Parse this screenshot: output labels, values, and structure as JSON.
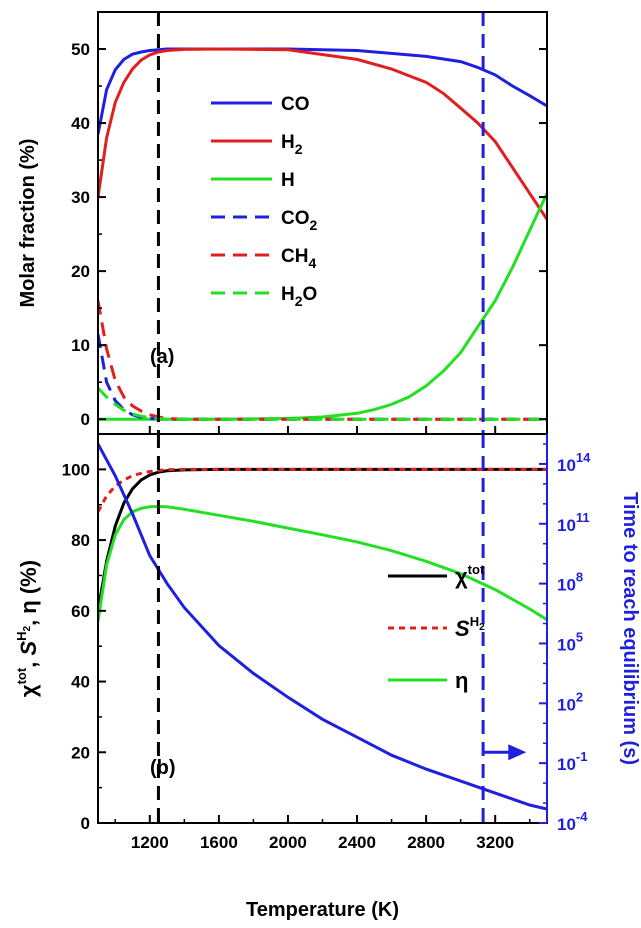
{
  "chart_data": [
    {
      "type": "line",
      "panel_label": "(a)",
      "ylabel": "Molar fraction (%)",
      "xlim": [
        900,
        3500
      ],
      "ylim": [
        -2,
        55
      ],
      "yticks": [
        0,
        10,
        20,
        30,
        40,
        50
      ],
      "vlines": [
        {
          "x": 1250,
          "color": "#000000",
          "style": "dashed"
        },
        {
          "x": 3130,
          "color": "#1f1fe0",
          "style": "dashed"
        }
      ],
      "legend_position": "center-left",
      "series": [
        {
          "name": "CO",
          "color": "#1f1fe0",
          "style": "solid",
          "x": [
            900,
            950,
            1000,
            1050,
            1100,
            1150,
            1200,
            1250,
            1300,
            1400,
            1600,
            2000,
            2400,
            2800,
            3000,
            3100,
            3200,
            3300,
            3400,
            3500
          ],
          "y": [
            38.5,
            44.5,
            47.2,
            48.6,
            49.3,
            49.6,
            49.8,
            49.9,
            50,
            50,
            50,
            50,
            49.8,
            49,
            48.3,
            47.5,
            46.5,
            45,
            43.7,
            42.3
          ]
        },
        {
          "name": "H2",
          "color": "#e01f1f",
          "style": "solid",
          "x": [
            900,
            950,
            1000,
            1050,
            1100,
            1150,
            1200,
            1250,
            1300,
            1400,
            1600,
            2000,
            2400,
            2600,
            2800,
            2900,
            3000,
            3100,
            3200,
            3300,
            3400,
            3500
          ],
          "y": [
            30,
            38,
            42.8,
            45.5,
            47.3,
            48.5,
            49.2,
            49.6,
            49.8,
            49.95,
            50,
            49.9,
            48.6,
            47.3,
            45.5,
            44,
            42,
            40,
            37.5,
            34,
            30.5,
            27
          ]
        },
        {
          "name": "H",
          "color": "#22e022",
          "style": "solid",
          "x": [
            900,
            1200,
            1600,
            2000,
            2200,
            2400,
            2500,
            2600,
            2700,
            2800,
            2900,
            3000,
            3100,
            3200,
            3300,
            3400,
            3500
          ],
          "y": [
            0,
            0,
            0,
            0.1,
            0.3,
            0.8,
            1.3,
            2,
            3,
            4.5,
            6.5,
            9,
            12.5,
            16,
            20.5,
            25.5,
            30.5
          ]
        },
        {
          "name": "CO2",
          "color": "#1f1fe0",
          "style": "dashed",
          "x": [
            900,
            950,
            1000,
            1050,
            1100,
            1150,
            1200,
            1250,
            1300,
            1400,
            3500
          ],
          "y": [
            11.5,
            5,
            2.5,
            1.3,
            0.6,
            0.25,
            0.1,
            0.05,
            0,
            0,
            0
          ]
        },
        {
          "name": "CH4",
          "color": "#e01f1f",
          "style": "dashed",
          "x": [
            900,
            950,
            1000,
            1050,
            1100,
            1150,
            1200,
            1250,
            1300,
            1400,
            3500
          ],
          "y": [
            16,
            9.5,
            5.2,
            3,
            1.8,
            1.1,
            0.6,
            0.3,
            0.1,
            0,
            0
          ]
        },
        {
          "name": "H2O",
          "color": "#22e022",
          "style": "dashed",
          "x": [
            900,
            950,
            1000,
            1050,
            1100,
            1150,
            1200,
            1250,
            1300,
            1400,
            3500
          ],
          "y": [
            4.2,
            3,
            2,
            1.2,
            0.7,
            0.4,
            0.2,
            0.1,
            0,
            0,
            0
          ]
        }
      ]
    },
    {
      "type": "line",
      "panel_label": "(b)",
      "xlabel": "Temperature (K)",
      "ylabel": "χtot, SH2, η (%)",
      "y2label": "Time to reach equilibrium (s)",
      "xlim": [
        900,
        3500
      ],
      "xticks": [
        1200,
        1600,
        2000,
        2400,
        2800,
        3200
      ],
      "ylim": [
        0,
        110
      ],
      "yticks": [
        0,
        20,
        40,
        60,
        80,
        100
      ],
      "y2scale": "log",
      "y2lim_exp": [
        -4,
        15.5
      ],
      "y2ticks_exp": [
        -4,
        -1,
        2,
        5,
        8,
        11,
        14
      ],
      "vlines": [
        {
          "x": 1250,
          "color": "#000000",
          "style": "dashed"
        },
        {
          "x": 3130,
          "color": "#1f1fe0",
          "style": "dashed"
        }
      ],
      "annotation": {
        "type": "arrow",
        "from_x": 3130,
        "to_x": 3380,
        "y": 20,
        "color": "#1f1fe0"
      },
      "legend_position": "center-right",
      "series": [
        {
          "name": "χtot",
          "color": "#000000",
          "style": "solid",
          "axis": "left",
          "x": [
            900,
            950,
            1000,
            1050,
            1100,
            1150,
            1200,
            1250,
            1300,
            1400,
            1600,
            2000,
            2400,
            2800,
            3200,
            3500
          ],
          "y": [
            60,
            74,
            84,
            90.5,
            94.5,
            97,
            98.4,
            99.2,
            99.6,
            99.85,
            100,
            100,
            100,
            100,
            100,
            100
          ]
        },
        {
          "name": "SH2",
          "color": "#e01f1f",
          "style": "dotted",
          "axis": "left",
          "x": [
            900,
            950,
            1000,
            1050,
            1100,
            1150,
            1200,
            1250,
            1300,
            1400,
            1600,
            2000,
            2400,
            2800,
            3200,
            3500
          ],
          "y": [
            88,
            92.5,
            95.3,
            97,
            98.2,
            98.9,
            99.4,
            99.7,
            99.9,
            100,
            100,
            100,
            100,
            100,
            100,
            100
          ]
        },
        {
          "name": "η",
          "color": "#22e022",
          "style": "solid",
          "axis": "left",
          "x": [
            900,
            950,
            1000,
            1050,
            1100,
            1150,
            1200,
            1250,
            1300,
            1400,
            1600,
            1800,
            2000,
            2200,
            2400,
            2600,
            2800,
            3000,
            3200,
            3400,
            3500
          ],
          "y": [
            57,
            73,
            81.5,
            85.8,
            88,
            89,
            89.4,
            89.5,
            89.4,
            88.7,
            87,
            85.3,
            83.4,
            81.5,
            79.5,
            77,
            74,
            70.5,
            66,
            60.5,
            57.5
          ]
        },
        {
          "name": "time",
          "color": "#1f1fe0",
          "style": "solid",
          "axis": "right",
          "x": [
            900,
            1000,
            1100,
            1200,
            1300,
            1400,
            1600,
            1800,
            2000,
            2200,
            2400,
            2600,
            2800,
            3000,
            3200,
            3400,
            3500
          ],
          "log10_y": [
            15,
            13.4,
            11.5,
            9.4,
            8,
            6.8,
            4.9,
            3.5,
            2.3,
            1.2,
            0.3,
            -0.6,
            -1.3,
            -1.9,
            -2.5,
            -3.1,
            -3.3
          ]
        }
      ]
    }
  ]
}
